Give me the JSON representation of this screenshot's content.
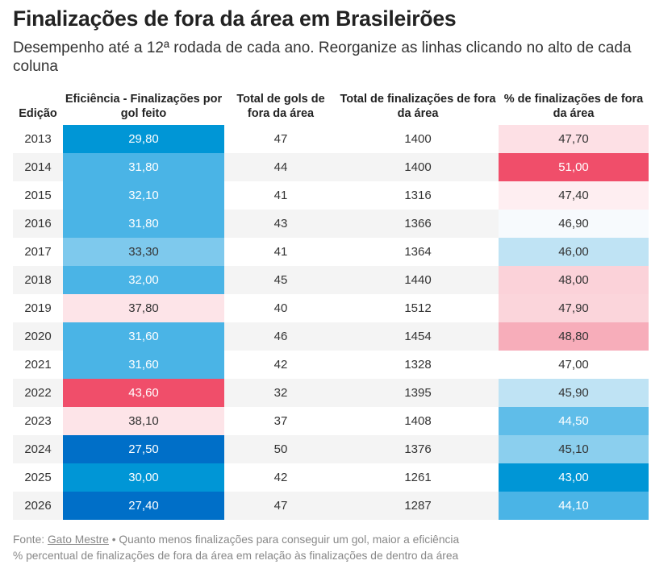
{
  "header": {
    "title": "Finalizações de fora da área em Brasileirões",
    "subtitle": "Desempenho até a 12ª rodada de cada ano. Reorganize as linhas clicando no alto de cada coluna"
  },
  "chart_data": {
    "type": "table",
    "columns": [
      "Edição",
      "Eficiência - Finalizações por gol feito",
      "Total de gols de fora da área",
      "Total de finalizações de fora da área",
      "% de finalizações de fora da área"
    ],
    "rows": [
      {
        "edicao": "2013",
        "eficiencia": "29,80",
        "gols": "47",
        "finalizacoes": "1400",
        "percentual": "47,70"
      },
      {
        "edicao": "2014",
        "eficiencia": "31,80",
        "gols": "44",
        "finalizacoes": "1400",
        "percentual": "51,00"
      },
      {
        "edicao": "2015",
        "eficiencia": "32,10",
        "gols": "41",
        "finalizacoes": "1316",
        "percentual": "47,40"
      },
      {
        "edicao": "2016",
        "eficiencia": "31,80",
        "gols": "43",
        "finalizacoes": "1366",
        "percentual": "46,90"
      },
      {
        "edicao": "2017",
        "eficiencia": "33,30",
        "gols": "41",
        "finalizacoes": "1364",
        "percentual": "46,00"
      },
      {
        "edicao": "2018",
        "eficiencia": "32,00",
        "gols": "45",
        "finalizacoes": "1440",
        "percentual": "48,00"
      },
      {
        "edicao": "2019",
        "eficiencia": "37,80",
        "gols": "40",
        "finalizacoes": "1512",
        "percentual": "47,90"
      },
      {
        "edicao": "2020",
        "eficiencia": "31,60",
        "gols": "46",
        "finalizacoes": "1454",
        "percentual": "48,80"
      },
      {
        "edicao": "2021",
        "eficiencia": "31,60",
        "gols": "42",
        "finalizacoes": "1328",
        "percentual": "47,00"
      },
      {
        "edicao": "2022",
        "eficiencia": "43,60",
        "gols": "32",
        "finalizacoes": "1395",
        "percentual": "45,90"
      },
      {
        "edicao": "2023",
        "eficiencia": "38,10",
        "gols": "37",
        "finalizacoes": "1408",
        "percentual": "44,50"
      },
      {
        "edicao": "2024",
        "eficiencia": "27,50",
        "gols": "50",
        "finalizacoes": "1376",
        "percentual": "45,10"
      },
      {
        "edicao": "2025",
        "eficiencia": "30,00",
        "gols": "42",
        "finalizacoes": "1261",
        "percentual": "43,00"
      },
      {
        "edicao": "2026",
        "eficiencia": "27,40",
        "gols": "47",
        "finalizacoes": "1287",
        "percentual": "44,10"
      }
    ],
    "heat_colors": {
      "eficiencia": [
        "#0096d6",
        "#4ab4e6",
        "#4ab4e6",
        "#4ab4e6",
        "#7ec9ed",
        "#4ab4e6",
        "#fde4e8",
        "#4ab4e6",
        "#4ab4e6",
        "#f04e6a",
        "#fde4e8",
        "#006fc8",
        "#0096d6",
        "#006fc8"
      ],
      "percentual": [
        "#fde0e5",
        "#f04e6a",
        "#feeef1",
        "#f7fafd",
        "#bfe3f4",
        "#fbd2d9",
        "#fbd5db",
        "#f7adba",
        "#ffffff",
        "#bfe3f4",
        "#5fbde9",
        "#8bcfee",
        "#0096d6",
        "#4ab4e6"
      ]
    }
  },
  "footer": {
    "source_prefix": "Fonte: ",
    "source_link": "Gato Mestre",
    "note1": " • Quanto menos finalizações para conseguir um gol, maior a eficiência",
    "note2": "% percentual de finalizações de fora da área em relação às finalizações de dentro da área"
  }
}
